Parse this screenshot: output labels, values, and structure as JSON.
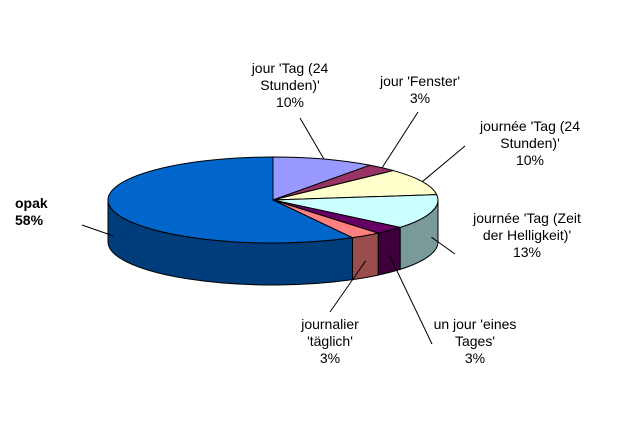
{
  "chart_data": {
    "type": "pie3d",
    "categories": [
      "jour 'Tag (24 Stunden)'",
      "jour 'Fenster'",
      "journée 'Tag (24 Stunden)'",
      "journée 'Tag (Zeit der Helligkeit)'",
      "un jour 'eines Tages'",
      "journalier 'täglich'",
      "opak"
    ],
    "values": [
      10,
      3,
      10,
      13,
      3,
      3,
      58
    ],
    "value_labels": [
      "10%",
      "3%",
      "10%",
      "13%",
      "3%",
      "3%",
      "58%"
    ],
    "colors": [
      "#9999ff",
      "#993366",
      "#ffffcc",
      "#ccffff",
      "#660066",
      "#ff8080",
      "#0066cc"
    ]
  }
}
